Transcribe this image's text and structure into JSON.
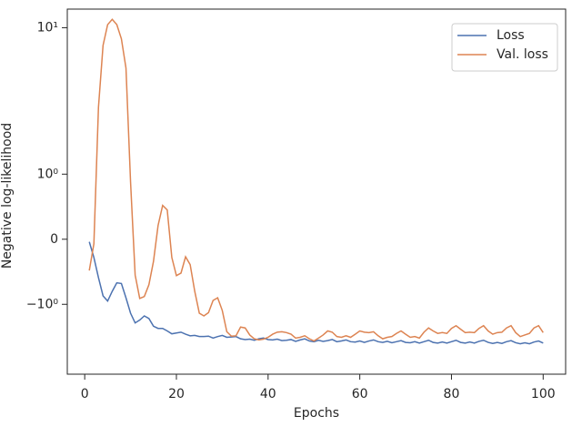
{
  "chart_data": {
    "type": "line",
    "x_label": "Epochs",
    "y_label": "Negative log-likelihood",
    "yscale": "symlog",
    "linthresh": 1,
    "linscale": 0.4,
    "xlim": [
      -3.8,
      104.9
    ],
    "xticks": [
      0,
      20,
      40,
      60,
      80,
      100
    ],
    "ylim": [
      -3,
      13.4
    ],
    "yticks": [
      {
        "value": 10,
        "label": "10¹"
      },
      {
        "value": 1,
        "label": "10⁰"
      },
      0,
      {
        "value": -1,
        "label": "−10⁰"
      }
    ],
    "legend": "upper right",
    "x": [
      1,
      2,
      3,
      4,
      5,
      6,
      7,
      8,
      9,
      10,
      11,
      12,
      13,
      14,
      15,
      16,
      17,
      18,
      19,
      20,
      21,
      22,
      23,
      24,
      25,
      26,
      27,
      28,
      29,
      30,
      31,
      32,
      33,
      34,
      35,
      36,
      37,
      38,
      39,
      40,
      41,
      42,
      43,
      44,
      45,
      46,
      47,
      48,
      49,
      50,
      51,
      52,
      53,
      54,
      55,
      56,
      57,
      58,
      59,
      60,
      61,
      62,
      63,
      64,
      65,
      66,
      67,
      68,
      69,
      70,
      71,
      72,
      73,
      74,
      75,
      76,
      77,
      78,
      79,
      80,
      81,
      82,
      83,
      84,
      85,
      86,
      87,
      88,
      89,
      90,
      91,
      92,
      93,
      94,
      95,
      96,
      97,
      98,
      99,
      100
    ],
    "series": [
      {
        "name": "Loss",
        "color": "#4c72b0",
        "values": [
          -0.04,
          -0.28,
          -0.59,
          -0.87,
          -0.95,
          -0.8,
          -0.67,
          -0.68,
          -0.9,
          -1.15,
          -1.34,
          -1.28,
          -1.2,
          -1.25,
          -1.41,
          -1.46,
          -1.46,
          -1.52,
          -1.59,
          -1.57,
          -1.55,
          -1.6,
          -1.64,
          -1.63,
          -1.66,
          -1.66,
          -1.65,
          -1.7,
          -1.66,
          -1.63,
          -1.68,
          -1.67,
          -1.66,
          -1.72,
          -1.74,
          -1.73,
          -1.76,
          -1.72,
          -1.7,
          -1.74,
          -1.75,
          -1.73,
          -1.77,
          -1.76,
          -1.74,
          -1.79,
          -1.75,
          -1.72,
          -1.78,
          -1.8,
          -1.76,
          -1.79,
          -1.77,
          -1.74,
          -1.8,
          -1.78,
          -1.75,
          -1.8,
          -1.81,
          -1.78,
          -1.82,
          -1.78,
          -1.75,
          -1.8,
          -1.82,
          -1.79,
          -1.83,
          -1.8,
          -1.77,
          -1.82,
          -1.83,
          -1.8,
          -1.84,
          -1.8,
          -1.76,
          -1.82,
          -1.84,
          -1.81,
          -1.84,
          -1.8,
          -1.76,
          -1.82,
          -1.84,
          -1.81,
          -1.84,
          -1.79,
          -1.76,
          -1.82,
          -1.85,
          -1.82,
          -1.85,
          -1.8,
          -1.77,
          -1.83,
          -1.86,
          -1.83,
          -1.86,
          -1.81,
          -1.78,
          -1.84
        ]
      },
      {
        "name": "Val. loss",
        "color": "#dd8452",
        "values": [
          -0.48,
          -0.07,
          2.86,
          7.57,
          10.5,
          11.4,
          10.5,
          8.4,
          5.3,
          0.88,
          -0.55,
          -0.91,
          -0.88,
          -0.7,
          -0.34,
          0.21,
          0.52,
          0.45,
          -0.28,
          -0.56,
          -0.52,
          -0.27,
          -0.39,
          -0.8,
          -1.15,
          -1.2,
          -1.14,
          -0.94,
          -0.9,
          -1.1,
          -1.54,
          -1.65,
          -1.64,
          -1.43,
          -1.45,
          -1.62,
          -1.72,
          -1.75,
          -1.73,
          -1.68,
          -1.6,
          -1.55,
          -1.54,
          -1.56,
          -1.6,
          -1.7,
          -1.68,
          -1.64,
          -1.72,
          -1.78,
          -1.7,
          -1.62,
          -1.52,
          -1.55,
          -1.66,
          -1.68,
          -1.64,
          -1.68,
          -1.6,
          -1.52,
          -1.55,
          -1.56,
          -1.54,
          -1.64,
          -1.72,
          -1.68,
          -1.66,
          -1.58,
          -1.52,
          -1.6,
          -1.68,
          -1.66,
          -1.7,
          -1.55,
          -1.45,
          -1.52,
          -1.58,
          -1.56,
          -1.58,
          -1.46,
          -1.4,
          -1.48,
          -1.56,
          -1.55,
          -1.56,
          -1.46,
          -1.4,
          -1.52,
          -1.6,
          -1.56,
          -1.55,
          -1.45,
          -1.4,
          -1.56,
          -1.66,
          -1.62,
          -1.58,
          -1.45,
          -1.4,
          -1.56
        ]
      }
    ]
  }
}
